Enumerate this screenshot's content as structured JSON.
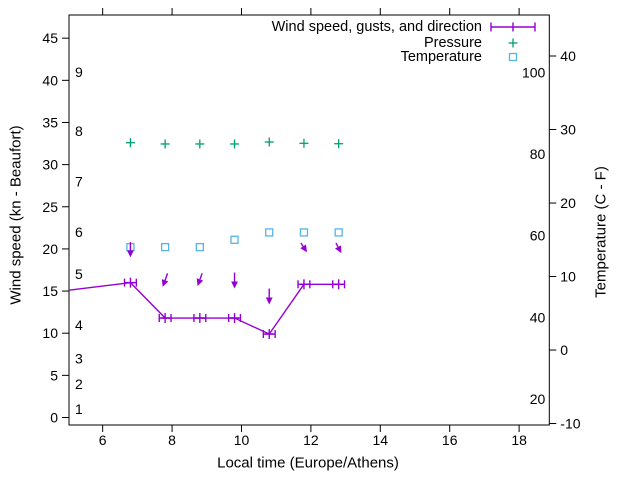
{
  "chart_data": {
    "type": "line",
    "title": "",
    "xlabel": "Local time (Europe/Athens)",
    "ylabel_left": "Wind speed (kn - Beaufort)",
    "ylabel_right": "Temperature (C - F)",
    "x_ticks": [
      6,
      8,
      10,
      12,
      14,
      16,
      18
    ],
    "x_range_hours": [
      5.03,
      18.87
    ],
    "y_left_ticks_kn": [
      0,
      5,
      10,
      15,
      20,
      25,
      30,
      35,
      40,
      45
    ],
    "y_left_range_kn": [
      -0.89,
      47.75
    ],
    "y_right_ticks_c": [
      -10,
      0,
      10,
      20,
      30,
      40
    ],
    "y_right_range_c": [
      -10.2,
      45.58
    ],
    "beaufort_inner_labels": [
      {
        "label": "1",
        "kn": 1
      },
      {
        "label": "2",
        "kn": 4
      },
      {
        "label": "3",
        "kn": 7
      },
      {
        "label": "4",
        "kn": 11
      },
      {
        "label": "5",
        "kn": 17
      },
      {
        "label": "6",
        "kn": 22
      },
      {
        "label": "7",
        "kn": 28
      },
      {
        "label": "8",
        "kn": 34
      },
      {
        "label": "9",
        "kn": 41
      }
    ],
    "fahrenheit_inner_labels": [
      20,
      40,
      60,
      80,
      100
    ],
    "x_hours": [
      6.8,
      7.8,
      8.8,
      9.8,
      10.8,
      11.8,
      12.8
    ],
    "series": [
      {
        "name": "Wind speed, gusts, and direction",
        "color": "#9400d3",
        "style": "xerrorlines",
        "edge_start": {
          "t": 5.03,
          "kn": 15.1
        },
        "wind_kn": [
          16.0,
          11.8,
          11.8,
          11.8,
          9.9,
          15.8,
          15.8
        ],
        "x_error_hours": 0.17
      },
      {
        "name": "Pressure",
        "color": "#009e73",
        "style": "points-plus",
        "y_kn_equivalent": [
          32.6,
          32.45,
          32.45,
          32.45,
          32.68,
          32.53,
          32.48
        ]
      },
      {
        "name": "Temperature",
        "color": "#56b4e9",
        "style": "points-square",
        "temp_c": [
          14,
          14,
          14,
          15,
          16,
          16,
          16
        ]
      }
    ],
    "direction_arrows": {
      "color": "#9400d3",
      "arrows": [
        {
          "t": 6.8,
          "tail_kn": 20.8,
          "tip_kn": 19.0,
          "tilt_deg": 0
        },
        {
          "t": 7.8,
          "tail_kn": 17.1,
          "tip_kn": 15.5,
          "tilt_deg": -20
        },
        {
          "t": 8.8,
          "tail_kn": 17.1,
          "tip_kn": 15.6,
          "tilt_deg": -20
        },
        {
          "t": 9.8,
          "tail_kn": 17.2,
          "tip_kn": 15.3,
          "tilt_deg": 0
        },
        {
          "t": 10.8,
          "tail_kn": 15.3,
          "tip_kn": 13.4,
          "tilt_deg": 0
        },
        {
          "t": 11.8,
          "tail_kn": 20.7,
          "tip_kn": 19.6,
          "tilt_deg": 33
        },
        {
          "t": 12.8,
          "tail_kn": 20.7,
          "tip_kn": 19.5,
          "tilt_deg": 28
        }
      ]
    },
    "colors": {
      "axis": "#000000",
      "background": "#ffffff"
    }
  }
}
